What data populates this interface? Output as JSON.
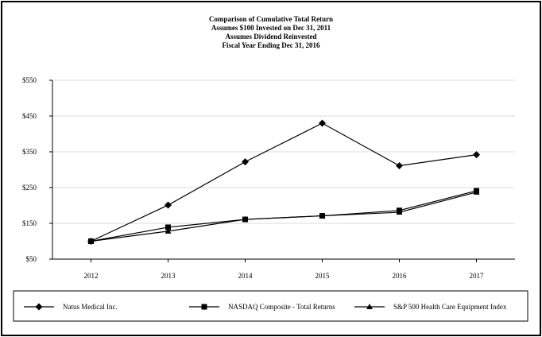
{
  "chart_data": {
    "type": "line",
    "title": [
      "Comparison of Cumulative Total Return",
      "Assumes $100 Invested on Dec 31, 2011",
      "Assumes Dividend Reinvested",
      "Fiscal Year Ending Dec 31, 2016"
    ],
    "categories": [
      "2012",
      "2013",
      "2014",
      "2015",
      "2016",
      "2017"
    ],
    "ylim": [
      50,
      550
    ],
    "yticks": [
      50,
      150,
      250,
      350,
      450,
      550
    ],
    "ytick_labels": [
      "$50",
      "$150",
      "$250",
      "$350",
      "$450",
      "$550"
    ],
    "grid": true,
    "legend_position": "bottom",
    "series": [
      {
        "name": "Natus Medical Inc.",
        "marker": "diamond",
        "values": [
          100,
          201,
          322,
          430,
          311,
          342
        ]
      },
      {
        "name": "NASDAQ Composite - Total Returns",
        "marker": "square",
        "values": [
          100,
          139,
          161,
          171,
          186,
          241
        ]
      },
      {
        "name": "S&P 500 Health Care Equipment Index",
        "marker": "triangle",
        "values": [
          100,
          128,
          161,
          171,
          181,
          237
        ]
      }
    ]
  }
}
